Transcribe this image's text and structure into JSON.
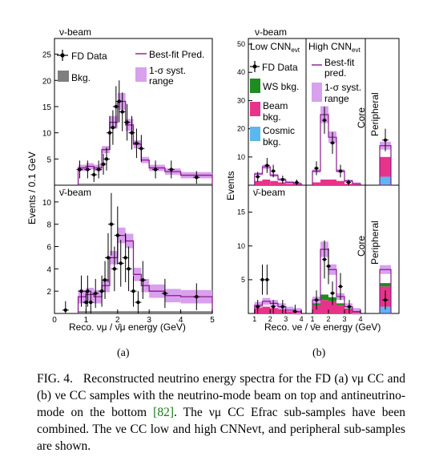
{
  "chart_data": [
    {
      "type": "histogram",
      "panel": "a-top",
      "title": "ν-beam",
      "xlabel": "Reco. νμ / ν̄μ energy (GeV)",
      "ylabel": "Events / 0.1 GeV",
      "xlim": [
        0,
        5
      ],
      "ylim": [
        0,
        28
      ],
      "yticks": [
        5,
        10,
        15,
        20,
        25
      ],
      "legend": [
        "FD Data",
        "Best-fit Pred.",
        "Bkg.",
        "1-σ syst. range"
      ],
      "bins": [
        [
          0.75,
          1.0
        ],
        [
          1.0,
          1.25
        ],
        [
          1.25,
          1.5
        ],
        [
          1.5,
          1.75
        ],
        [
          1.75,
          2.0
        ],
        [
          2.0,
          2.25
        ],
        [
          2.25,
          2.5
        ],
        [
          2.5,
          2.75
        ],
        [
          2.75,
          3.0
        ],
        [
          3.0,
          3.5
        ],
        [
          3.5,
          4.0
        ],
        [
          4.0,
          5.0
        ]
      ],
      "prediction": [
        3.3,
        3.6,
        3.3,
        6.8,
        12.0,
        16.0,
        11.5,
        7.8,
        4.8,
        3.3,
        2.6,
        1.9
      ],
      "background": [
        0.3,
        0.3,
        0.3,
        0.3,
        0.3,
        0.3,
        0.3,
        0.3,
        0.3,
        0.3,
        0.3,
        0.3
      ],
      "data_x": [
        0.8,
        1.05,
        1.25,
        1.4,
        1.55,
        1.65,
        1.75,
        1.85,
        1.95,
        2.05,
        2.15,
        2.3,
        2.45,
        2.6,
        2.75,
        3.2,
        3.7,
        4.5
      ],
      "data_y": [
        3,
        3,
        2,
        3,
        4,
        5,
        10,
        11,
        15,
        16,
        14,
        12,
        10,
        8,
        7,
        3,
        3,
        1.5
      ],
      "data_err": [
        1.7,
        1.7,
        1.4,
        1.7,
        2.0,
        2.2,
        3.2,
        3.3,
        3.9,
        4.0,
        3.7,
        3.5,
        3.2,
        2.8,
        2.6,
        1.7,
        1.7,
        1.2
      ]
    },
    {
      "type": "histogram",
      "panel": "a-bottom",
      "title": "ν̄-beam",
      "xlabel": "Reco. νμ / ν̄μ energy (GeV)",
      "xlim": [
        0,
        5
      ],
      "ylim": [
        0,
        11.5
      ],
      "yticks": [
        2,
        4,
        6,
        8,
        10
      ],
      "xticks": [
        0,
        1,
        2,
        3,
        4,
        5
      ],
      "bins": [
        [
          0.75,
          1.0
        ],
        [
          1.0,
          1.25
        ],
        [
          1.25,
          1.5
        ],
        [
          1.5,
          1.75
        ],
        [
          1.75,
          2.0
        ],
        [
          2.0,
          2.25
        ],
        [
          2.25,
          2.5
        ],
        [
          2.5,
          2.75
        ],
        [
          2.75,
          3.0
        ],
        [
          3.0,
          3.5
        ],
        [
          3.5,
          4.0
        ],
        [
          4.0,
          5.0
        ]
      ],
      "prediction": [
        1.5,
        1.7,
        1.5,
        2.5,
        5.0,
        7.0,
        6.5,
        3.5,
        2.5,
        2.0,
        1.6,
        1.5
      ],
      "background": [
        0.2,
        0.2,
        0.2,
        0.2,
        0.2,
        0.2,
        0.2,
        0.2,
        0.2,
        0.2,
        0.2,
        0.2
      ],
      "data_x": [
        0.35,
        0.85,
        1.0,
        1.05,
        1.15,
        1.3,
        1.5,
        1.6,
        1.7,
        1.8,
        1.9,
        2.0,
        2.1,
        2.25,
        2.35,
        2.5,
        2.65,
        2.8,
        3.5,
        4.5
      ],
      "data_y": [
        0.3,
        2,
        1,
        2,
        1,
        1.8,
        2,
        3,
        5,
        8,
        4,
        7,
        4.5,
        5,
        4,
        2,
        1,
        3,
        1.8,
        1.5
      ],
      "data_err": [
        0.8,
        1.4,
        1.0,
        1.4,
        1.0,
        1.3,
        1.4,
        1.7,
        2.2,
        2.8,
        2.0,
        2.6,
        2.1,
        2.2,
        2.0,
        1.4,
        1.0,
        1.7,
        1.3,
        1.2
      ]
    },
    {
      "type": "histogram",
      "panel": "b-top",
      "title": "ν-beam",
      "xlabel": "Reco. νe / ν̄e energy (GeV)",
      "ylabel": "Events",
      "ylim": [
        0,
        52
      ],
      "yticks": [
        10,
        20,
        30,
        40,
        50
      ],
      "section_labels": [
        "Low CNN_evt",
        "High CNN_evt",
        "Core",
        "Peripheral"
      ],
      "legend": [
        "FD Data",
        "Best-fit pred.",
        "WS bkg.",
        "1-σ syst. range",
        "Beam bkg.",
        "Cosmic bkg."
      ],
      "low_cnn": {
        "bins": [
          [
            1,
            1.5
          ],
          [
            1.5,
            2
          ],
          [
            2,
            2.5
          ],
          [
            2.5,
            3
          ],
          [
            3,
            3.5
          ],
          [
            3.5,
            4
          ]
        ],
        "prediction": [
          4,
          6.5,
          3.5,
          2,
          1,
          0.5
        ],
        "beam_bkg": [
          1.5,
          2,
          1.5,
          1,
          0.5,
          0.3
        ],
        "data_x": [
          1.2,
          1.8,
          2.2,
          2.8,
          3.7
        ],
        "data_y": [
          3,
          7,
          5,
          2,
          1
        ]
      },
      "high_cnn": {
        "bins": [
          [
            1,
            1.5
          ],
          [
            1.5,
            2
          ],
          [
            2,
            2.5
          ],
          [
            2.5,
            3
          ],
          [
            3,
            3.5
          ],
          [
            3.5,
            4
          ]
        ],
        "prediction": [
          5,
          25,
          17,
          5,
          1.5,
          0.5
        ],
        "beam_bkg": [
          1,
          2,
          2,
          1.5,
          0.5,
          0.3
        ],
        "data_x": [
          1.25,
          1.75,
          2.25,
          2.75,
          3.25
        ],
        "data_y": [
          6,
          23,
          15,
          5,
          1
        ]
      },
      "peripheral": {
        "prediction": 14,
        "beam_bkg": 7,
        "cosmic_bkg": 3,
        "data": 16
      }
    },
    {
      "type": "histogram",
      "panel": "b-bottom",
      "title": "ν̄-beam",
      "xlabel": "Reco. νe / ν̄e energy (GeV)",
      "ylim": [
        0,
        19
      ],
      "yticks": [
        5,
        10,
        15
      ],
      "xticks": [
        1,
        2,
        3,
        4
      ],
      "low_cnn": {
        "bins": [
          [
            1,
            1.5
          ],
          [
            1.5,
            2
          ],
          [
            2,
            2.5
          ],
          [
            2.5,
            3
          ],
          [
            3,
            3.5
          ],
          [
            3.5,
            4
          ]
        ],
        "prediction": [
          1.2,
          1.8,
          1.5,
          1,
          0.5,
          0.3
        ],
        "beam_bkg": [
          0.8,
          1,
          0.8,
          0.6,
          0.3,
          0.2
        ],
        "data_x": [
          1.2,
          1.5,
          1.8,
          2.2,
          2.8,
          3.6
        ],
        "data_y": [
          1,
          5,
          5,
          1,
          1,
          0.3
        ]
      },
      "high_cnn": {
        "bins": [
          [
            1,
            1.5
          ],
          [
            1.5,
            2
          ],
          [
            2,
            2.5
          ],
          [
            2.5,
            3
          ],
          [
            3,
            3.5
          ],
          [
            3.5,
            4
          ]
        ],
        "prediction": [
          2,
          9.5,
          6.5,
          2.5,
          1,
          0.3
        ],
        "beam_bkg": [
          1.2,
          2,
          1.8,
          1.2,
          0.6,
          0.2
        ],
        "ws_bkg": [
          0.3,
          0.8,
          0.6,
          0.3,
          0.1,
          0.05
        ],
        "data_x": [
          1.25,
          1.75,
          2.0,
          2.25,
          2.75,
          3.3
        ],
        "data_y": [
          2,
          8,
          7,
          3,
          4,
          1
        ]
      },
      "peripheral": {
        "prediction": 6.5,
        "beam_bkg": 3,
        "ws_bkg": 0.5,
        "cosmic_bkg": 1,
        "data": 2
      }
    }
  ],
  "labels": {
    "a_top_title": "ν-beam",
    "a_bot_title": "ν̄-beam",
    "a_ylabel": "Events / 0.1 GeV",
    "a_xlabel": "Reco. νμ / ν̄μ energy (GeV)",
    "a_leg_data": "FD Data",
    "a_leg_bkg": "Bkg.",
    "a_leg_pred": "Best-fit Pred.",
    "a_leg_syst_1": "1-σ syst.",
    "a_leg_syst_2": "range",
    "b_top_title": "ν-beam",
    "b_bot_title": "ν̄-beam",
    "b_ylabel": "Events",
    "b_xlabel": "Reco. νe / ν̄e energy (GeV)",
    "b_low_cnn": "Low CNN",
    "b_high_cnn": "High CNN",
    "b_cnn_sub": "evt",
    "b_core": "Core",
    "b_peripheral": "Peripheral",
    "b_leg_data": "FD Data",
    "b_leg_pred_1": "Best-fit",
    "b_leg_pred_2": "pred.",
    "b_leg_ws": "WS bkg.",
    "b_leg_syst_1": "1-σ syst.",
    "b_leg_syst_2": "range",
    "b_leg_beam_1": "Beam",
    "b_leg_beam_2": "bkg.",
    "b_leg_cosmic_1": "Cosmic",
    "b_leg_cosmic_2": "bkg.",
    "sub_a": "(a)",
    "sub_b": "(b)"
  },
  "caption": {
    "fig": "FIG. 4.",
    "text_1": "Reconstructed neutrino energy spectra for the FD (a) νμ CC and (b) νe CC samples with the neutrino-mode beam on top and antineutrino-mode on the bottom",
    "ref": "[82]",
    "text_2": ". The νμ CC Efrac sub-samples have been combined. The νe CC low and high CNNevt, and peripheral sub-samples are shown."
  },
  "colors": {
    "prediction": "#8b1a8b",
    "syst_band": "#d9a0ee",
    "background": "#7f7f7f",
    "ws_bkg": "#1e8c1e",
    "beam_bkg": "#e8338a",
    "cosmic_bkg": "#5bb8ee"
  }
}
